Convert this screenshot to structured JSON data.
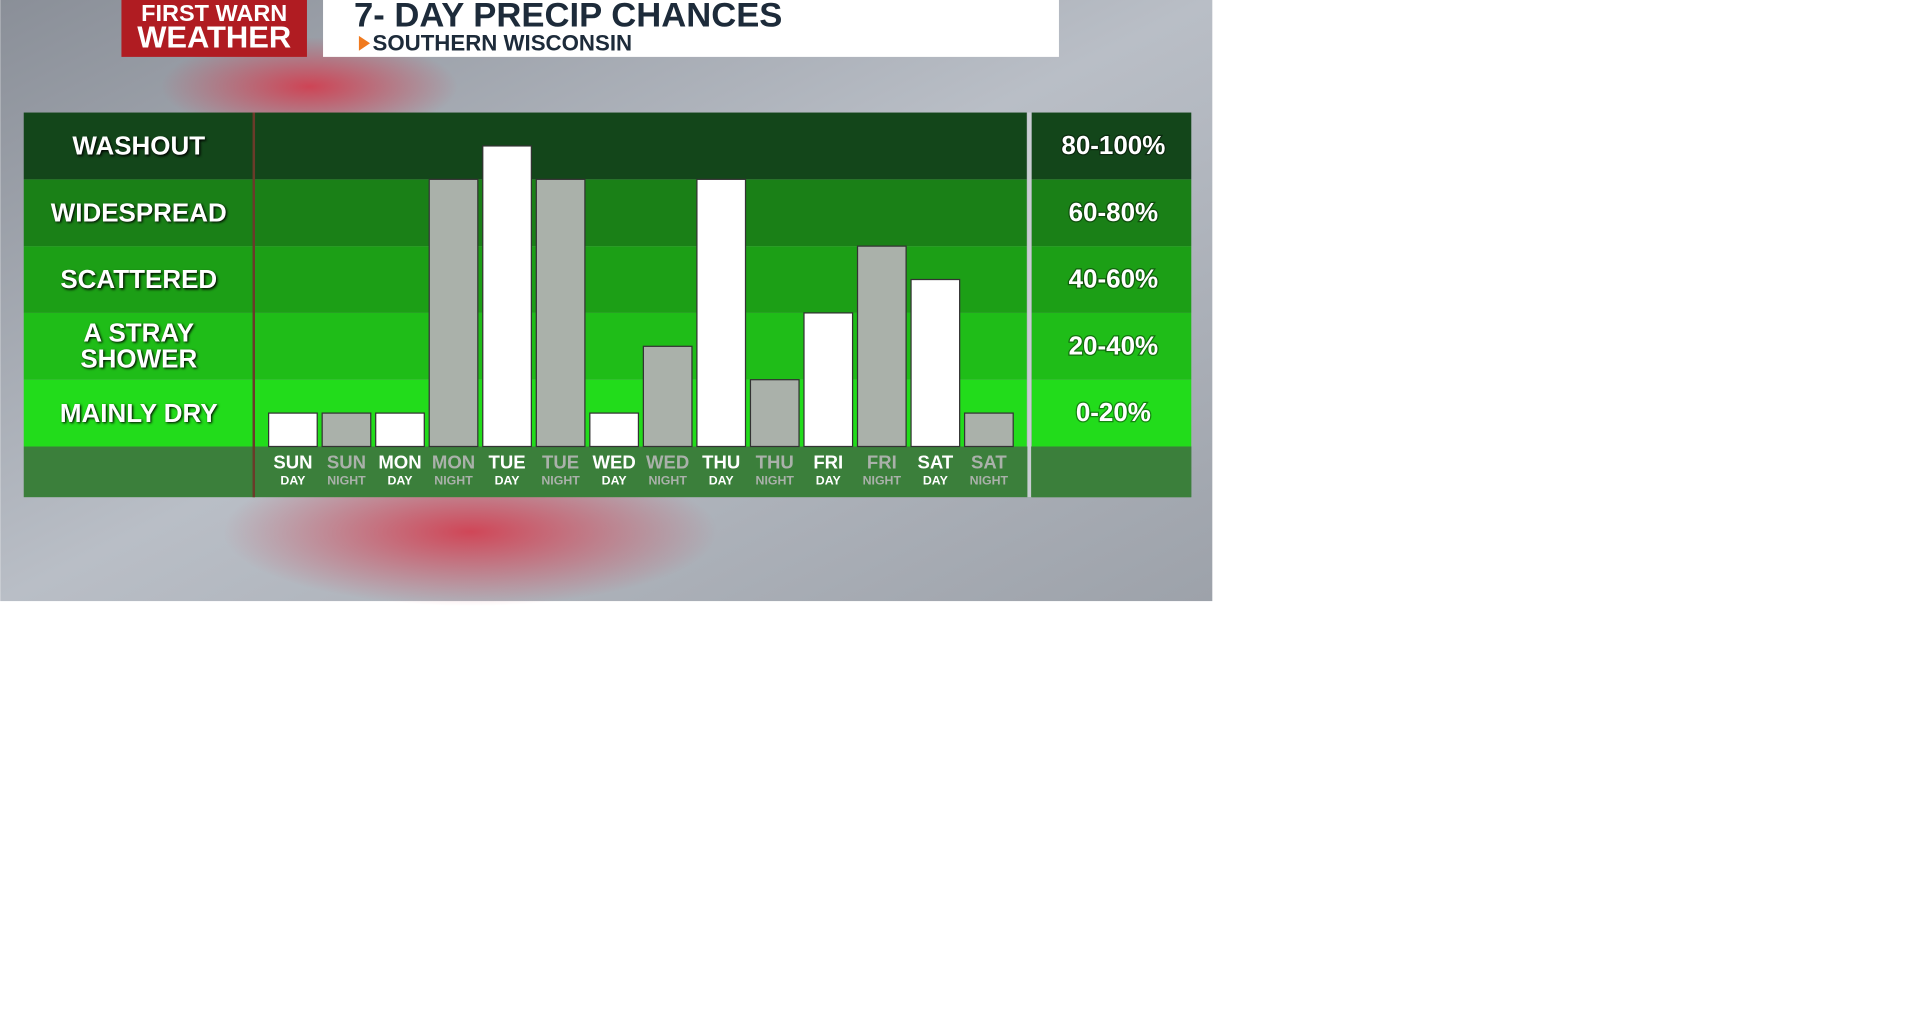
{
  "header": {
    "logo_top": "FIRST WARN",
    "logo_bottom": "WEATHER"
  },
  "chart_data": {
    "type": "bar",
    "title": "7- DAY PRECIP CHANCES",
    "subtitle": "SOUTHERN WISCONSIN",
    "categories": [
      "SUN",
      "SUN",
      "MON",
      "MON",
      "TUE",
      "TUE",
      "WED",
      "WED",
      "THU",
      "THU",
      "FRI",
      "FRI",
      "SAT",
      "SAT"
    ],
    "periods": [
      "DAY",
      "NIGHT",
      "DAY",
      "NIGHT",
      "DAY",
      "NIGHT",
      "DAY",
      "NIGHT",
      "DAY",
      "NIGHT",
      "DAY",
      "NIGHT",
      "DAY",
      "NIGHT"
    ],
    "values": [
      10,
      10,
      10,
      80,
      90,
      80,
      10,
      30,
      80,
      20,
      40,
      60,
      50,
      10
    ],
    "colors": [
      "#ffffff",
      "#aab1aa",
      "#ffffff",
      "#aab1aa",
      "#ffffff",
      "#aab1aa",
      "#ffffff",
      "#aab1aa",
      "#ffffff",
      "#aab1aa",
      "#ffffff",
      "#aab1aa",
      "#ffffff",
      "#aab1aa"
    ],
    "ylim": [
      0,
      100
    ],
    "yticks": [
      0,
      20,
      40,
      60,
      80,
      100
    ],
    "bands": [
      {
        "label": "MAINLY DRY",
        "range": "0-20%",
        "color": "#22dc1b"
      },
      {
        "label": "A STRAY SHOWER",
        "range": "20-40%",
        "color": "#1fbd18"
      },
      {
        "label": "SCATTERED",
        "range": "40-60%",
        "color": "#1c9f16"
      },
      {
        "label": "WIDESPREAD",
        "range": "60-80%",
        "color": "#1a8017"
      },
      {
        "label": "WASHOUT",
        "range": "80-100%",
        "color": "#13461a"
      }
    ]
  }
}
